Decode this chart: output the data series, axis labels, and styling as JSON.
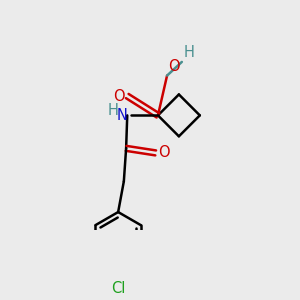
{
  "background_color": "#ebebeb",
  "bond_color": "#000000",
  "bond_width": 1.8,
  "figsize": [
    3.0,
    3.0
  ],
  "dpi": 100,
  "xlim": [
    0.0,
    1.0
  ],
  "ylim": [
    0.0,
    1.0
  ],
  "colors": {
    "O": "#cc0000",
    "N": "#1010cc",
    "H": "#4a9090",
    "Cl": "#1ea01e",
    "C": "#000000"
  }
}
